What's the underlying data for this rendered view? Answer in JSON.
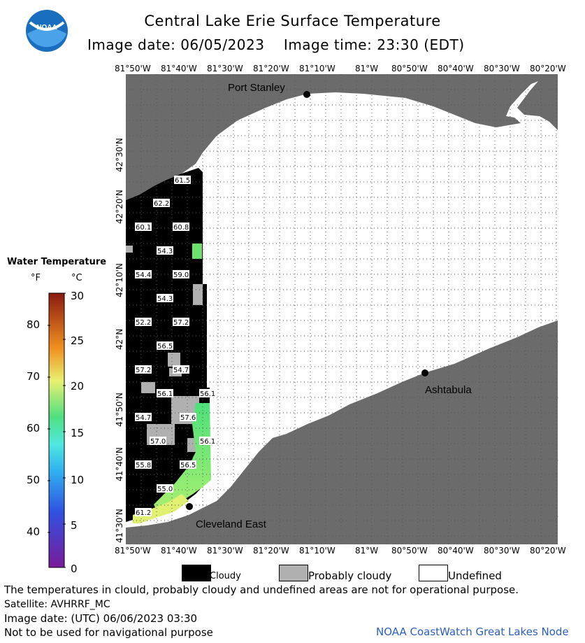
{
  "header": {
    "title": "Central Lake Erie Surface Temperature",
    "date_label": "Image date:",
    "date_value": "06/05/2023",
    "time_label": "Image time:",
    "time_value": "23:30 (EDT)"
  },
  "logo_text": "NOAA",
  "map": {
    "lon_labels": [
      "81°50'W",
      "81°40'W",
      "81°30'W",
      "81°20'W",
      "81°10'W",
      "81°W",
      "80°50'W",
      "80°40'W",
      "80°30'W",
      "80°20'W"
    ],
    "lat_labels": [
      "42°30'N",
      "42°20'N",
      "42°10'N",
      "42°N",
      "41°50'N",
      "41°40'N",
      "41°30'N"
    ],
    "places": [
      {
        "name": "Port Stanley"
      },
      {
        "name": "Ashtabula"
      },
      {
        "name": "Cleveland East"
      }
    ],
    "temperature_labels": [
      "61.5",
      "62.2",
      "60.1",
      "60.8",
      "54.3",
      "54.4",
      "59.0",
      "54.3",
      "52.2",
      "57.2",
      "56.5",
      "56.1",
      "54.7",
      "57.2",
      "56.1",
      "54.7",
      "57.6",
      "57.0",
      "56.1",
      "55.8",
      "56.5",
      "55.0",
      "61.2"
    ],
    "colors": {
      "land": "#6b6b6b",
      "cloud": "#000000",
      "probably_cloudy": "#b0b0b0",
      "undefined": "#ffffff",
      "grid": "#555555"
    }
  },
  "legend": {
    "title": "Water Temperature",
    "unit_f": "°F",
    "unit_c": "°C",
    "f_ticks": [
      "80",
      "70",
      "60",
      "50",
      "40"
    ],
    "c_ticks": [
      "30",
      "25",
      "20",
      "15",
      "10",
      "5",
      "0"
    ]
  },
  "key": {
    "cloudy": "Cloudy",
    "probably_cloudy": "Probably cloudy",
    "undefined": "Undefined"
  },
  "footer": {
    "disclaimer": "The temperatures in clould, probably cloudy and undefined areas are not for operational purpose.",
    "satellite": "Satellite: AVHRRF_MC",
    "image_date": "Image date: (UTC) 06/06/2023  03:30",
    "nav_warning": "Not to be used for navigational purpose",
    "node": "NOAA CoastWatch Great Lakes Node"
  }
}
